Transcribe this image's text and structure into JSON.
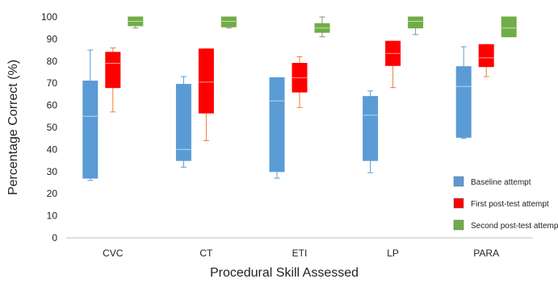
{
  "chart_data": {
    "type": "boxplot",
    "xlabel": "Procedural Skill Assessed",
    "ylabel": "Percentage Correct (%)",
    "ylim": [
      0,
      100
    ],
    "yticks": [
      0,
      10,
      20,
      30,
      40,
      50,
      60,
      70,
      80,
      90,
      100
    ],
    "categories": [
      "CVC",
      "CT",
      "ETI",
      "LP",
      "PARA"
    ],
    "grid": false,
    "legend_position": "bottom-right",
    "series": [
      {
        "name": "Baseline attempt",
        "color": "#5B9BD5",
        "whisker_color": "#5B9BD5",
        "boxes": [
          {
            "min": 26,
            "q1": 27,
            "median": 55,
            "q3": 71,
            "max": 85
          },
          {
            "min": 32,
            "q1": 35,
            "median": 40,
            "q3": 69.5,
            "max": 73
          },
          {
            "min": 27,
            "q1": 30,
            "median": 62,
            "q3": 72.5,
            "max": 72.5
          },
          {
            "min": 29.5,
            "q1": 35,
            "median": 55.5,
            "q3": 64,
            "max": 66.5
          },
          {
            "min": 45,
            "q1": 45.5,
            "median": 68.5,
            "q3": 77.5,
            "max": 86.5
          }
        ]
      },
      {
        "name": "First post-test attempt",
        "color": "#FF0000",
        "whisker_color": "#ED7D31",
        "boxes": [
          {
            "min": 57,
            "q1": 68,
            "median": 79,
            "q3": 84,
            "max": 86
          },
          {
            "min": 44,
            "q1": 56.5,
            "median": 70.5,
            "q3": 85.5,
            "max": 85.5
          },
          {
            "min": 59,
            "q1": 66,
            "median": 72.5,
            "q3": 79,
            "max": 82
          },
          {
            "min": 68,
            "q1": 78,
            "median": 83.5,
            "q3": 89,
            "max": 89
          },
          {
            "min": 73,
            "q1": 77.5,
            "median": 81.5,
            "q3": 87.5,
            "max": 87.5
          }
        ]
      },
      {
        "name": "Second post-test attempt",
        "color": "#70AD47",
        "whisker_color": "#8C8C8C",
        "boxes": [
          {
            "min": 95,
            "q1": 96,
            "median": 98,
            "q3": 100,
            "max": 100
          },
          {
            "min": 95,
            "q1": 95.5,
            "median": 98,
            "q3": 100,
            "max": 100
          },
          {
            "min": 91,
            "q1": 93,
            "median": 95,
            "q3": 97,
            "max": 100
          },
          {
            "min": 92,
            "q1": 95,
            "median": 98,
            "q3": 100,
            "max": 100
          },
          {
            "min": 91,
            "q1": 91,
            "median": 95,
            "q3": 100,
            "max": 100
          }
        ]
      }
    ]
  }
}
